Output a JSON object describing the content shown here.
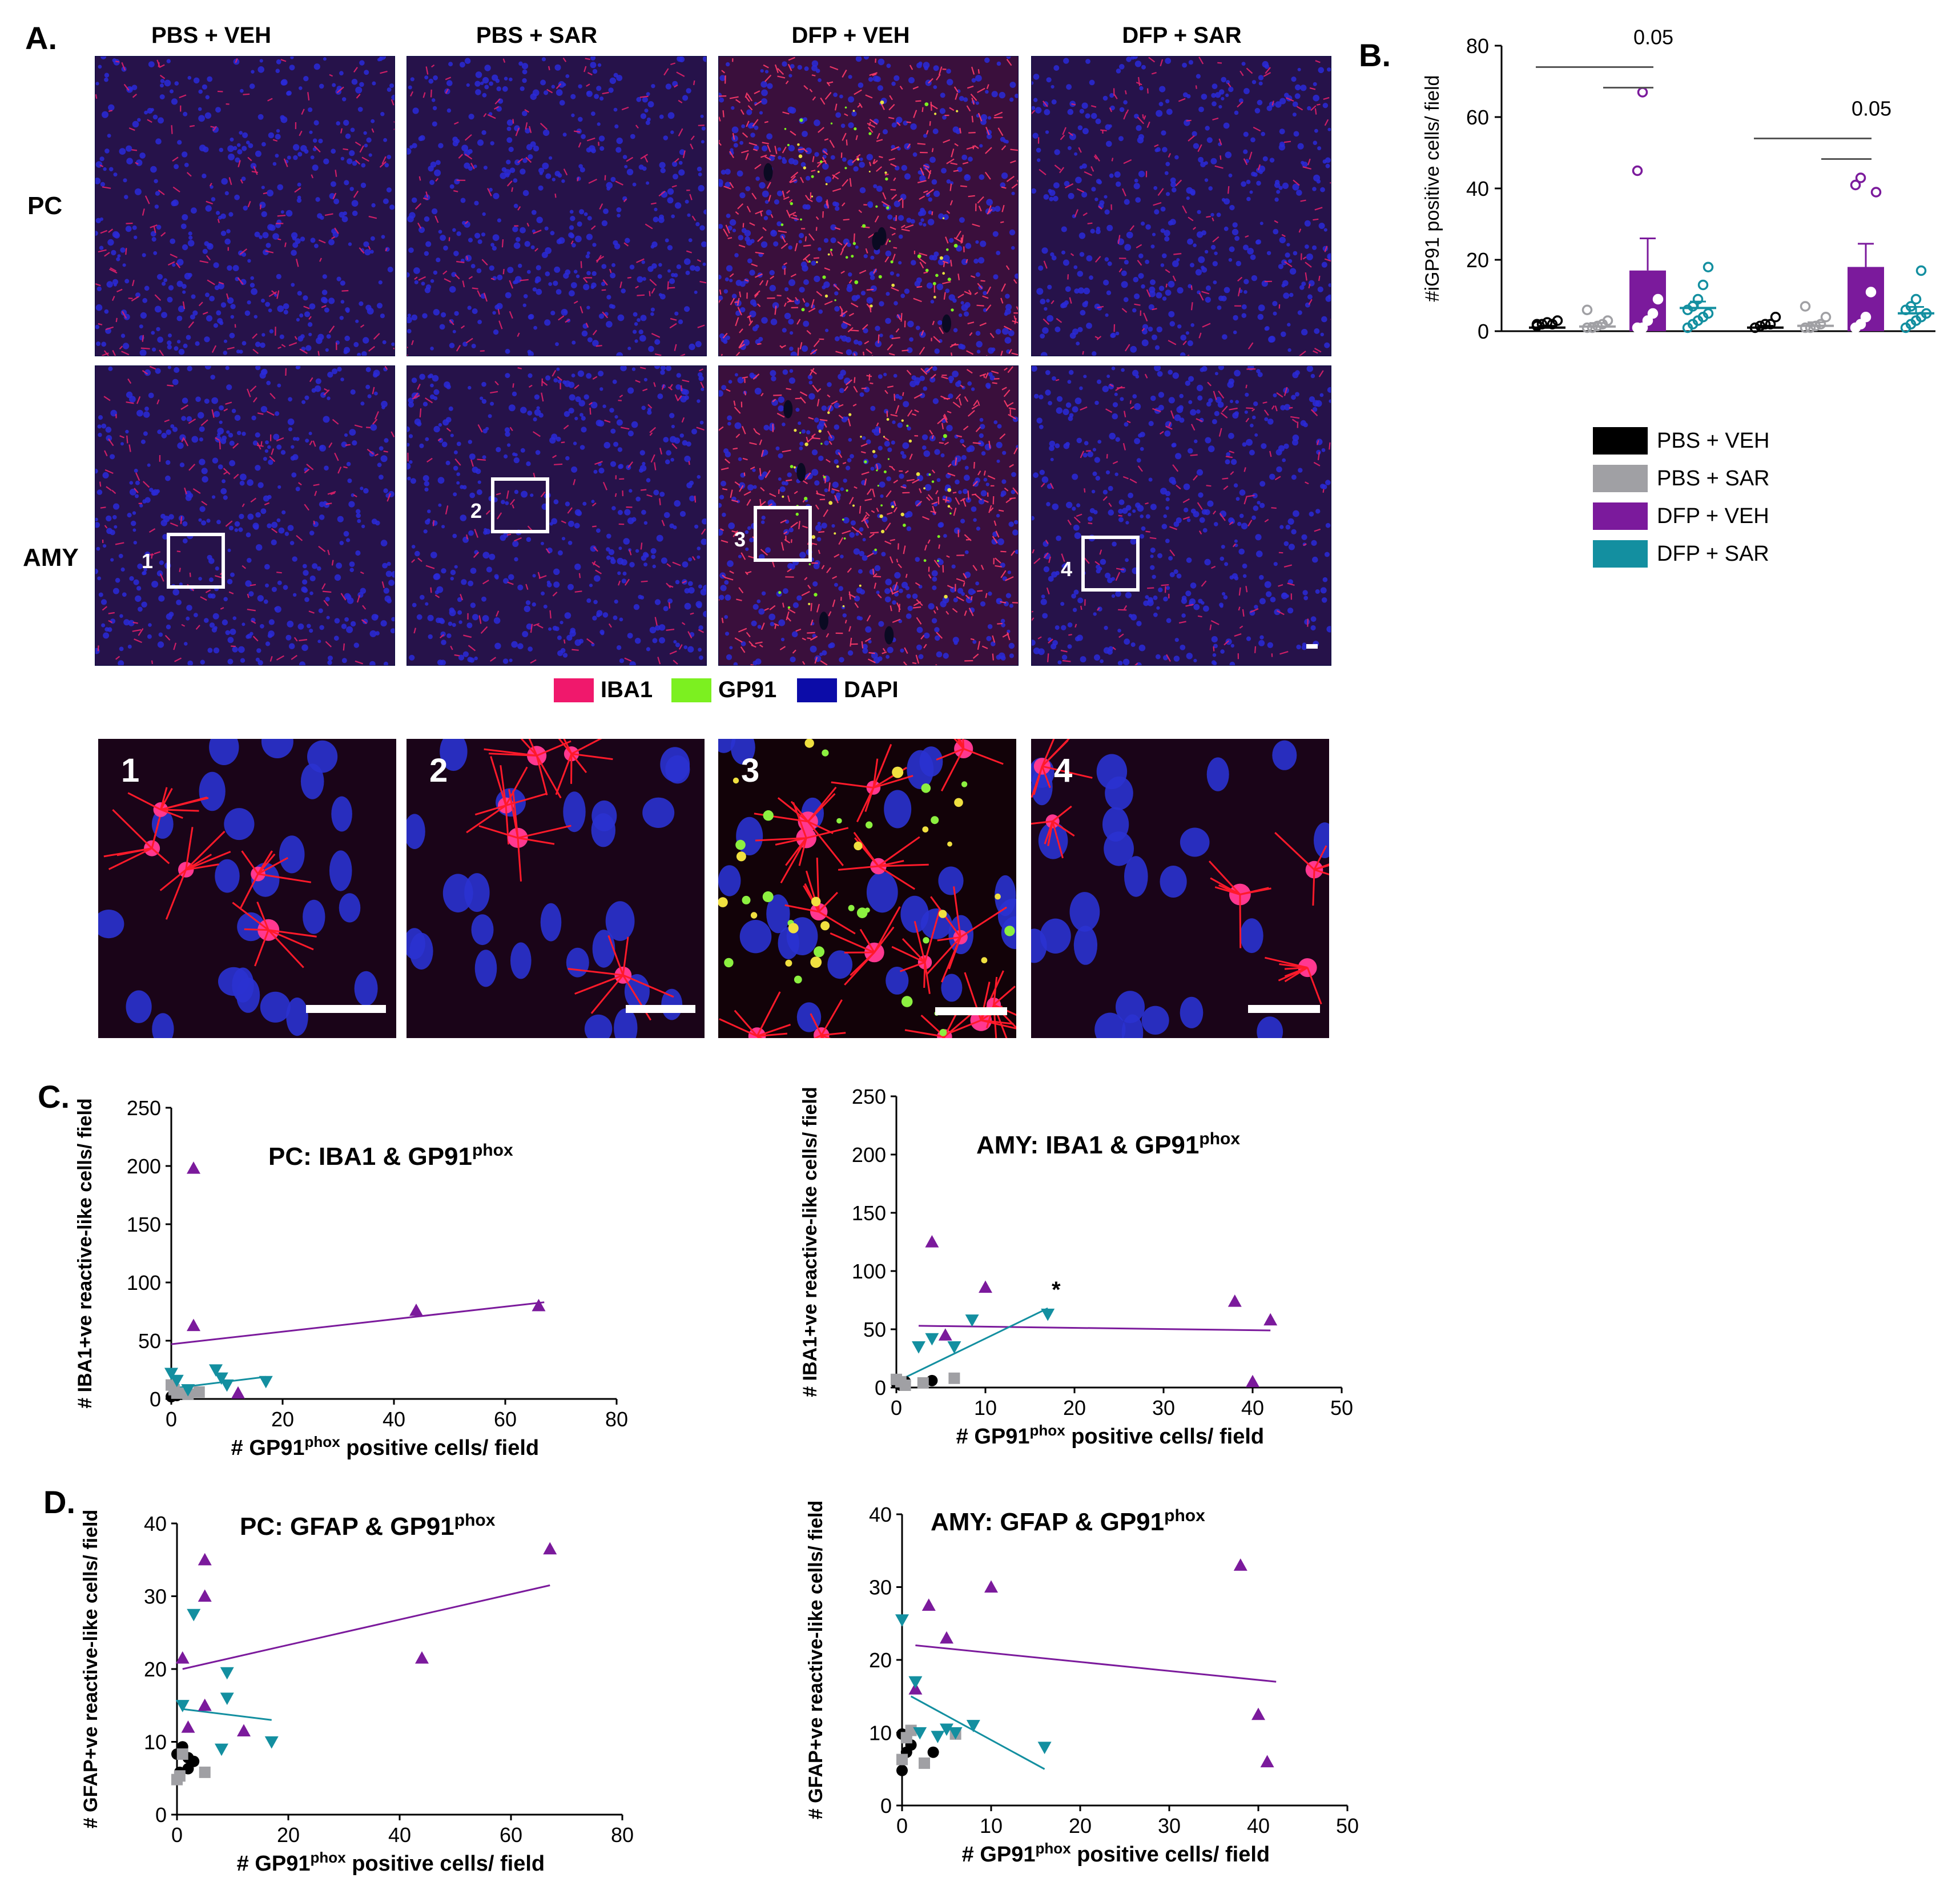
{
  "panel_a": {
    "letter": "A.",
    "columns": [
      "PBS + VEH",
      "PBS + SAR",
      "DFP + VEH",
      "DFP + SAR"
    ],
    "rows": [
      "PC",
      "AMY"
    ],
    "roi_labels": [
      "1",
      "2",
      "3",
      "4"
    ],
    "zoom_labels": [
      "1",
      "2",
      "3",
      "4"
    ],
    "stain_legend": [
      {
        "label": "IBA1",
        "color": "#f0186c"
      },
      {
        "label": "GP91",
        "color": "#7cf020"
      },
      {
        "label": "DAPI",
        "color": "#0c0ca8"
      }
    ]
  },
  "panel_b": {
    "letter": "B.",
    "legend": [
      {
        "label": "PBS + VEH",
        "color": "#000000"
      },
      {
        "label": "PBS + SAR",
        "color": "#a0a0a4"
      },
      {
        "label": "DFP + VEH",
        "color": "#7b1a9c"
      },
      {
        "label": "DFP + SAR",
        "color": "#138fa0"
      }
    ]
  },
  "panel_c": {
    "letter": "C."
  },
  "panel_d": {
    "letter": "D."
  },
  "chart_data": [
    {
      "id": "B",
      "type": "bar",
      "ylabel": "#iGP91 positive cells/ field",
      "ylim": [
        0,
        80
      ],
      "yticks": [
        "0",
        "20",
        "40",
        "60",
        "80"
      ],
      "groups": [
        {
          "bars": [
            {
              "group": "PBS + VEH",
              "mean": 1,
              "sem": 0.5,
              "points": [
                0.5,
                1,
                1.5,
                1,
                2,
                1
              ]
            },
            {
              "group": "PBS + SAR",
              "mean": 1.3,
              "sem": 1,
              "points": [
                0,
                0,
                0.5,
                1,
                2,
                5
              ]
            },
            {
              "group": "DFP + VEH",
              "mean": 17,
              "sem": 9,
              "points": [
                0,
                0,
                2,
                4,
                8,
                44,
                66
              ]
            },
            {
              "group": "DFP + SAR",
              "mean": 6.5,
              "sem": 1.8,
              "points": [
                0,
                1,
                2,
                3,
                4,
                5,
                6,
                8,
                12,
                17
              ]
            }
          ],
          "comparison": {
            "label": "0.05",
            "between": [
              "PBS + VEH",
              "DFP + VEH"
            ]
          }
        },
        {
          "bars": [
            {
              "group": "PBS + VEH",
              "mean": 1,
              "sem": 0.5,
              "points": [
                0,
                0.5,
                1,
                1,
                3
              ]
            },
            {
              "group": "PBS + SAR",
              "mean": 1.5,
              "sem": 1,
              "points": [
                0,
                0,
                0.5,
                1,
                3,
                6
              ]
            },
            {
              "group": "DFP + VEH",
              "mean": 18,
              "sem": 6.5,
              "points": [
                0,
                1,
                3,
                10,
                38,
                40,
                42
              ]
            },
            {
              "group": "DFP + SAR",
              "mean": 5,
              "sem": 1.8,
              "points": [
                0,
                1,
                2,
                3,
                4,
                5,
                6,
                8,
                16
              ]
            }
          ],
          "comparison": {
            "label": "0.05",
            "between": [
              "PBS + VEH",
              "DFP + VEH"
            ]
          }
        }
      ]
    },
    {
      "id": "C-left",
      "type": "scatter",
      "title": "PC: IBA1 & GP91",
      "title_sup": "phox",
      "xlabel": "# GP91",
      "xlabel_sup": "phox",
      "xlabel_rest": " positive cells/ field",
      "ylabel": "# IBA1+ve reactive-like cells/ field",
      "xlim": [
        0,
        80
      ],
      "ylim": [
        0,
        250
      ],
      "xticks": [
        "0",
        "20",
        "40",
        "60",
        "80"
      ],
      "yticks": [
        "0",
        "50",
        "100",
        "150",
        "200",
        "250"
      ],
      "series": [
        {
          "name": "PBS + VEH",
          "x": [
            0,
            0.5,
            1,
            1.5,
            2,
            3
          ],
          "y": [
            0,
            2,
            1,
            3,
            2,
            4
          ]
        },
        {
          "name": "PBS + SAR",
          "x": [
            0,
            0.5,
            1,
            5,
            3
          ],
          "y": [
            10,
            6,
            3,
            4,
            2
          ]
        },
        {
          "name": "DFP + VEH",
          "x": [
            4,
            4,
            44,
            66,
            12
          ],
          "y": [
            198,
            63,
            76,
            80,
            5
          ]
        },
        {
          "name": "DFP + SAR",
          "x": [
            0,
            1,
            3,
            8,
            9,
            10,
            17
          ],
          "y": [
            22,
            16,
            8,
            25,
            18,
            12,
            15
          ]
        }
      ],
      "fits": [
        {
          "series": "DFP + VEH",
          "x": [
            0,
            67
          ],
          "y": [
            47,
            83
          ]
        },
        {
          "series": "DFP + SAR",
          "x": [
            0,
            17
          ],
          "y": [
            9,
            19
          ]
        }
      ]
    },
    {
      "id": "C-right",
      "type": "scatter",
      "title": "AMY: IBA1 & GP91",
      "title_sup": "phox",
      "xlabel": "# GP91",
      "xlabel_sup": "phox",
      "xlabel_rest": " positive cells/ field",
      "ylabel": "# IBA1+ve reactive-like cells/ field",
      "xlim": [
        0,
        50
      ],
      "ylim": [
        0,
        250
      ],
      "xticks": [
        "0",
        "10",
        "20",
        "30",
        "40",
        "50"
      ],
      "yticks": [
        "0",
        "50",
        "100",
        "150",
        "200",
        "250"
      ],
      "annotation": "*",
      "series": [
        {
          "name": "PBS + VEH",
          "x": [
            0,
            0.5,
            1,
            4
          ],
          "y": [
            2,
            0,
            3,
            4
          ]
        },
        {
          "name": "PBS + SAR",
          "x": [
            0,
            0.5,
            1,
            3,
            6.5
          ],
          "y": [
            5,
            3,
            0,
            2,
            6
          ]
        },
        {
          "name": "DFP + VEH",
          "x": [
            4,
            10,
            38,
            42,
            40,
            5.5
          ],
          "y": [
            125,
            86,
            74,
            58,
            5,
            45
          ]
        },
        {
          "name": "DFP + SAR",
          "x": [
            2.5,
            4,
            6.5,
            8.5,
            17
          ],
          "y": [
            35,
            42,
            35,
            58,
            63
          ]
        }
      ],
      "fits": [
        {
          "series": "DFP + VEH",
          "x": [
            2.5,
            42
          ],
          "y": [
            53,
            49
          ]
        },
        {
          "series": "DFP + SAR",
          "x": [
            0,
            17
          ],
          "y": [
            5,
            68
          ]
        }
      ]
    },
    {
      "id": "D-left",
      "type": "scatter",
      "title": "PC: GFAP & GP91",
      "title_sup": "phox",
      "xlabel": "# GP91",
      "xlabel_sup": "phox",
      "xlabel_rest": " positive cells/ field",
      "ylabel": "# GFAP+ve reactive-like cells/ field",
      "xlim": [
        0,
        80
      ],
      "ylim": [
        0,
        40
      ],
      "xticks": [
        "0",
        "20",
        "40",
        "60",
        "80"
      ],
      "yticks": [
        "0",
        "10",
        "20",
        "30",
        "40"
      ],
      "series": [
        {
          "name": "PBS + VEH",
          "x": [
            0,
            0.5,
            1,
            2,
            2,
            3
          ],
          "y": [
            8,
            5.5,
            9,
            7.5,
            6,
            7
          ]
        },
        {
          "name": "PBS + SAR",
          "x": [
            0,
            0.5,
            5,
            1
          ],
          "y": [
            4.5,
            5,
            5.5,
            8
          ]
        },
        {
          "name": "DFP + VEH",
          "x": [
            1,
            5,
            5,
            5,
            2,
            12,
            44,
            67
          ],
          "y": [
            21.5,
            35,
            30,
            15,
            12,
            11.5,
            21.5,
            36.5
          ]
        },
        {
          "name": "DFP + SAR",
          "x": [
            1,
            3,
            9,
            9,
            8,
            17
          ],
          "y": [
            15,
            27.5,
            19.5,
            16,
            9,
            10
          ]
        }
      ],
      "fits": [
        {
          "series": "DFP + VEH",
          "x": [
            1,
            67
          ],
          "y": [
            20,
            31.5
          ]
        },
        {
          "series": "DFP + SAR",
          "x": [
            1,
            17
          ],
          "y": [
            14.5,
            13
          ]
        }
      ]
    },
    {
      "id": "D-right",
      "type": "scatter",
      "title": "AMY: GFAP & GP91",
      "title_sup": "phox",
      "xlabel": "# GP91",
      "xlabel_sup": "phox",
      "xlabel_rest": " positive cells/ field",
      "ylabel": "# GFAP+ve reactive-like cells/ field",
      "xlim": [
        0,
        50
      ],
      "ylim": [
        0,
        40
      ],
      "xticks": [
        "0",
        "10",
        "20",
        "30",
        "40",
        "50"
      ],
      "yticks": [
        "0",
        "10",
        "20",
        "30",
        "40"
      ],
      "series": [
        {
          "name": "PBS + VEH",
          "x": [
            0,
            0.5,
            1,
            3.5,
            0
          ],
          "y": [
            9.5,
            7,
            8,
            7,
            4.5
          ]
        },
        {
          "name": "PBS + SAR",
          "x": [
            0,
            0.5,
            1,
            2.5,
            6
          ],
          "y": [
            6,
            9,
            10,
            5.5,
            9.5
          ]
        },
        {
          "name": "DFP + VEH",
          "x": [
            1.5,
            3,
            5,
            10,
            38,
            40,
            41
          ],
          "y": [
            16,
            27.5,
            23,
            30,
            33,
            12.5,
            6
          ]
        },
        {
          "name": "DFP + SAR",
          "x": [
            0,
            1.5,
            2,
            4,
            5,
            6,
            8,
            16
          ],
          "y": [
            25.5,
            17,
            10,
            9.5,
            10.5,
            10,
            11,
            8
          ]
        }
      ],
      "fits": [
        {
          "series": "DFP + VEH",
          "x": [
            1.5,
            42
          ],
          "y": [
            22,
            17
          ]
        },
        {
          "series": "DFP + SAR",
          "x": [
            1,
            16
          ],
          "y": [
            15,
            5
          ]
        }
      ]
    }
  ]
}
